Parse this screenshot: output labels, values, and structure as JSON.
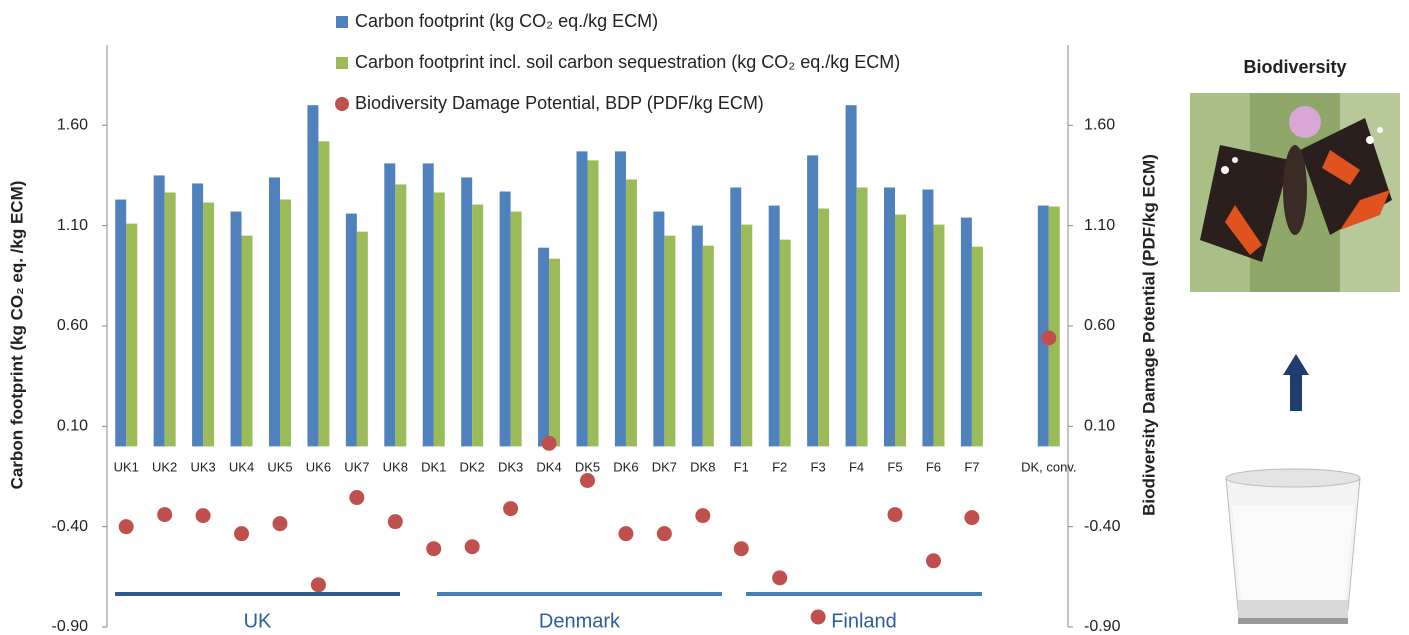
{
  "chart_data": {
    "type": "bar",
    "y_label": "Carbon footprint (kg CO₂ eq. /kg ECM)",
    "y2_label": "Biodiversity Damage Potential (PDF/kg ECM)",
    "categories": [
      "UK1",
      "UK2",
      "UK3",
      "UK4",
      "UK5",
      "UK6",
      "UK7",
      "UK8",
      "DK1",
      "DK2",
      "DK3",
      "DK4",
      "DK5",
      "DK6",
      "DK7",
      "DK8",
      "F1",
      "F2",
      "F3",
      "F4",
      "F5",
      "F6",
      "F7",
      null,
      "DK, conv."
    ],
    "series": [
      {
        "name": "Carbon footprint (kg CO₂ eq./kg ECM)",
        "type": "bar",
        "color": "#4f81bd",
        "values": [
          1.23,
          1.35,
          1.31,
          1.17,
          1.34,
          1.7,
          1.16,
          1.41,
          1.41,
          1.34,
          1.27,
          0.99,
          1.47,
          1.47,
          1.17,
          1.1,
          1.29,
          1.2,
          1.45,
          1.7,
          1.29,
          1.28,
          1.14,
          null,
          1.2
        ]
      },
      {
        "name": "Carbon footprint incl. soil carbon sequestration (kg CO₂ eq./kg ECM)",
        "type": "bar",
        "color": "#9bbb59",
        "values": [
          1.11,
          1.265,
          1.215,
          1.05,
          1.23,
          1.52,
          1.07,
          1.305,
          1.265,
          1.205,
          1.17,
          0.935,
          1.425,
          1.33,
          1.05,
          1.0,
          1.105,
          1.03,
          1.185,
          1.29,
          1.155,
          1.105,
          0.995,
          null,
          1.195
        ]
      },
      {
        "name": "Biodiversity Damage Potential, BDP (PDF/kg ECM)",
        "type": "scatter",
        "axis": "y2",
        "color": "#c0504d",
        "values": [
          -0.4,
          -0.34,
          -0.345,
          -0.435,
          -0.385,
          -0.69,
          -0.255,
          -0.375,
          -0.51,
          -0.5,
          -0.31,
          0.015,
          -0.17,
          -0.435,
          -0.435,
          -0.345,
          -0.51,
          -0.655,
          -0.85,
          null,
          -0.34,
          -0.57,
          -0.355,
          null,
          0.54
        ]
      }
    ],
    "groups": [
      "UK",
      "Denmark",
      "Finland"
    ],
    "ylim": [
      -0.9,
      2.0
    ],
    "yticks": [
      {
        "value": -0.9,
        "label": "-0.90"
      },
      {
        "value": -0.4,
        "label": "-0.40"
      },
      {
        "value": 0.1,
        "label": "0.10"
      },
      {
        "value": 0.6,
        "label": "0.60"
      },
      {
        "value": 1.1,
        "label": "1.10"
      },
      {
        "value": 1.6,
        "label": "1.60"
      }
    ],
    "y2lim": [
      -0.9,
      2.0
    ],
    "y2ticks": [
      {
        "value": -0.9,
        "label": "-0.90"
      },
      {
        "value": -0.4,
        "label": "-0.40"
      },
      {
        "value": 0.1,
        "label": "0.10"
      },
      {
        "value": 0.6,
        "label": "0.60"
      },
      {
        "value": 1.1,
        "label": "1.10"
      },
      {
        "value": 1.6,
        "label": "1.60"
      }
    ],
    "panel_title": "Biodiversity"
  }
}
